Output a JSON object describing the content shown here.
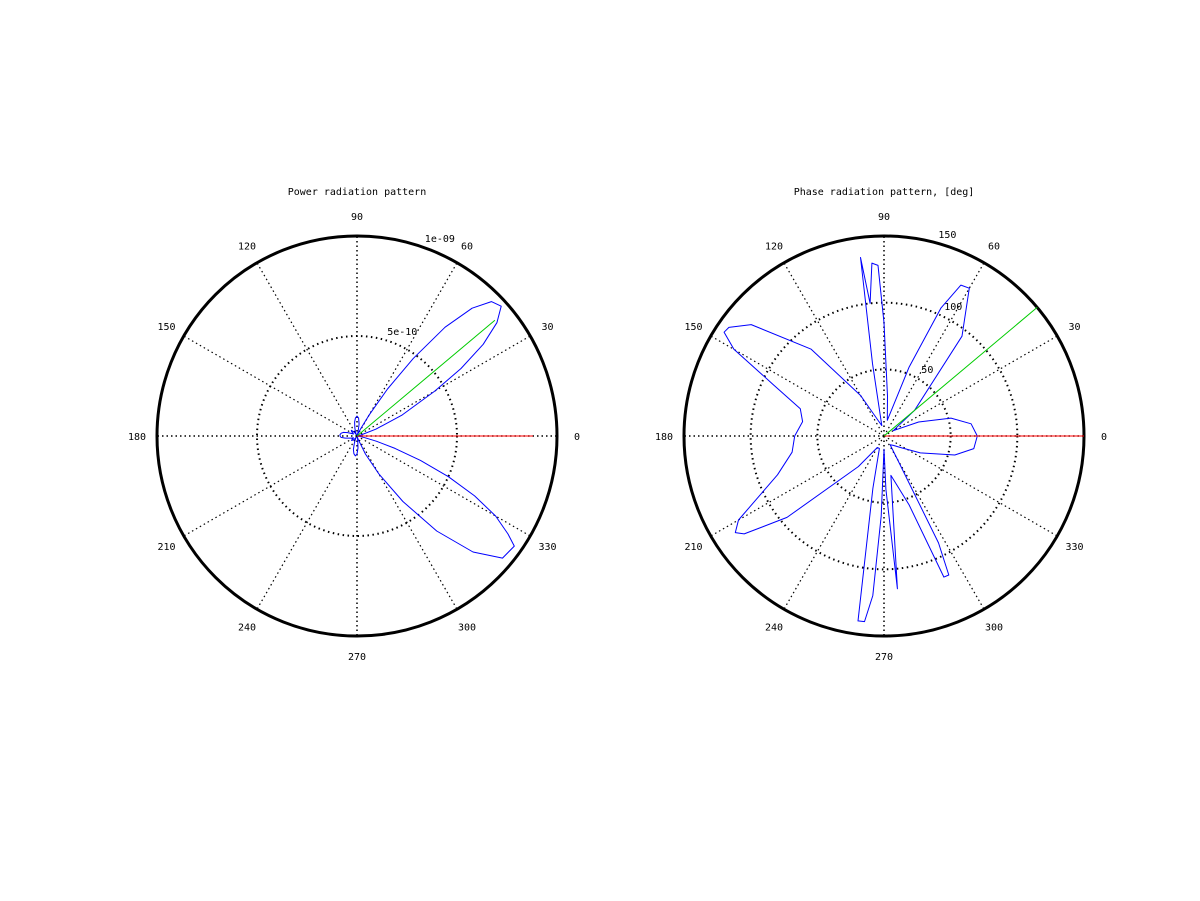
{
  "chart_data": [
    {
      "type": "line",
      "polar": true,
      "title": "Power radiation pattern",
      "rlim": [
        0,
        1e-09
      ],
      "angle_ticks_deg": [
        0,
        30,
        60,
        90,
        120,
        150,
        180,
        210,
        240,
        270,
        300,
        330
      ],
      "angle_tick_labels": [
        "0",
        "30",
        "60",
        "90",
        "120",
        "150",
        "180",
        "210",
        "240",
        "270",
        "300",
        "330"
      ],
      "r_ticks": [
        5e-10,
        1e-09
      ],
      "r_tick_labels": [
        "5e-10",
        "1e-09"
      ],
      "grid": true,
      "colors": {
        "pattern": "#0000ff",
        "reference": "#ff0000",
        "steer": "#00cc00",
        "grid": "#000000"
      },
      "series": [
        {
          "theta_deg": [
            0,
            5,
            10,
            15,
            20,
            25,
            30,
            33,
            36,
            39,
            42,
            45,
            48,
            51,
            54,
            57,
            60,
            63,
            66,
            70,
            75,
            80,
            85,
            90,
            95,
            100,
            105,
            110,
            115,
            120,
            125,
            130,
            135,
            140,
            145,
            150,
            155,
            160,
            165,
            170,
            175,
            180,
            185,
            190,
            195,
            200,
            205,
            210,
            215,
            220,
            225,
            230,
            235,
            240,
            245,
            250,
            255,
            260,
            265,
            270,
            275,
            280,
            285,
            290,
            295,
            300,
            305,
            310,
            315,
            320,
            325,
            327,
            330,
            333,
            336,
            339,
            342,
            345,
            348,
            351,
            354,
            357,
            360
          ],
          "r": [
            0,
            0,
            0,
            2e-11,
            1e-10,
            2.5e-10,
            4.5e-10,
            6.2e-10,
            7.8e-10,
            9e-10,
            9.7e-10,
            9.5e-10,
            8.6e-10,
            7e-10,
            4.8e-10,
            2.8e-10,
            1.2e-10,
            4e-11,
            1e-11,
            5e-12,
            2e-11,
            6e-11,
            9e-11,
            1e-10,
            9e-11,
            7e-11,
            4e-11,
            2e-11,
            1e-11,
            1e-11,
            2e-11,
            3e-11,
            4e-11,
            3.5e-11,
            2.5e-11,
            2e-11,
            3e-11,
            5e-11,
            7e-11,
            8e-11,
            8.5e-11,
            8.5e-11,
            8e-11,
            6e-11,
            4e-11,
            3e-11,
            2e-11,
            2e-11,
            3e-11,
            3.5e-11,
            3e-11,
            2e-11,
            1e-11,
            1e-11,
            2e-11,
            4e-11,
            7e-11,
            9e-11,
            1e-10,
            9e-11,
            6e-11,
            2e-11,
            5e-12,
            2e-11,
            1e-10,
            2.2e-10,
            4e-10,
            6.2e-10,
            8.2e-10,
            9.5e-10,
            9.6e-10,
            9e-10,
            8e-10,
            6.6e-10,
            5e-10,
            3.4e-10,
            2e-10,
            1e-10,
            4e-11,
            1e-11,
            0,
            0,
            0
          ]
        },
        {
          "theta_deg": [
            0,
            0
          ],
          "r": [
            0,
            8.8e-10
          ]
        },
        {
          "theta_deg": [
            40,
            40
          ],
          "r": [
            0,
            9e-10
          ]
        }
      ]
    },
    {
      "type": "line",
      "polar": true,
      "title": "Phase radiation pattern, [deg]",
      "rlim": [
        0,
        150
      ],
      "angle_ticks_deg": [
        0,
        30,
        60,
        90,
        120,
        150,
        180,
        210,
        240,
        270,
        300,
        330
      ],
      "angle_tick_labels": [
        "0",
        "30",
        "60",
        "90",
        "120",
        "150",
        "180",
        "210",
        "240",
        "270",
        "300",
        "330"
      ],
      "r_ticks": [
        50,
        100,
        150
      ],
      "r_tick_labels": [
        "50",
        "100",
        "150"
      ],
      "grid": true,
      "colors": {
        "pattern": "#0000ff",
        "reference": "#ff0000",
        "steer": "#00cc00",
        "grid": "#000000"
      },
      "series": [
        {
          "theta_deg": [
            0,
            8,
            15,
            22,
            30,
            40,
            52,
            60,
            63,
            66,
            70,
            78,
            85,
            90,
            92,
            94,
            96,
            97.5,
            99,
            102,
            110,
            120,
            130,
            140,
            145,
            147,
            150,
            155,
            162,
            170,
            180,
            190,
            200,
            210,
            213,
            215,
            220,
            230,
            240,
            250,
            258,
            262,
            264,
            266,
            268,
            270,
            272,
            275,
            280,
            290,
            293,
            295,
            297,
            300,
            305,
            315,
            325,
            335,
            345,
            352,
            360
          ],
          "r": [
            70,
            66,
            52,
            28,
            8,
            30,
            95,
            128,
            127,
            105,
            55,
            12,
            30,
            85,
            128,
            130,
            100,
            135,
            55,
            8,
            12,
            35,
            85,
            130,
            142,
            143,
            130,
            92,
            66,
            62,
            67,
            70,
            85,
            126,
            133,
            128,
            95,
            30,
            10,
            10,
            40,
            140,
            140,
            120,
            60,
            10,
            40,
            115,
            30,
            55,
            115,
            115,
            90,
            20,
            8,
            10,
            15,
            30,
            55,
            68,
            70
          ]
        },
        {
          "theta_deg": [
            0,
            0
          ],
          "r": [
            0,
            150
          ]
        },
        {
          "theta_deg": [
            40,
            40
          ],
          "r": [
            0,
            150
          ]
        }
      ]
    }
  ]
}
